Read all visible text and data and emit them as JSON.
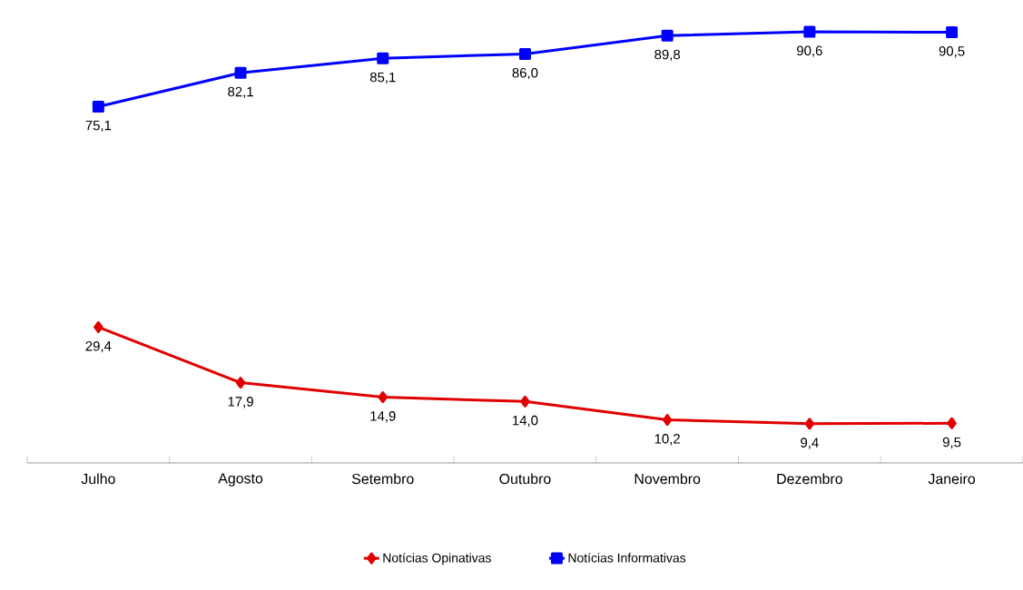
{
  "chart_data": {
    "type": "line",
    "categories": [
      "Julho",
      "Agosto",
      "Setembro",
      "Outubro",
      "Novembro",
      "Dezembro",
      "Janeiro"
    ],
    "series": [
      {
        "name": "Notícias Opinativas",
        "color": "#e00000",
        "marker": "diamond",
        "values": [
          29.4,
          17.9,
          14.9,
          14.0,
          10.2,
          9.4,
          9.5
        ],
        "value_labels": [
          "29,4",
          "17,9",
          "14,9",
          "14,0",
          "10,2",
          "9,4",
          "9,5"
        ]
      },
      {
        "name": "Notícias Informativas",
        "color": "#0000ff",
        "marker": "square",
        "values": [
          75.1,
          82.1,
          85.1,
          86.0,
          89.8,
          90.6,
          90.5
        ],
        "value_labels": [
          "75,1",
          "82,1",
          "85,1",
          "86,0",
          "89,8",
          "90,6",
          "90,5"
        ]
      }
    ],
    "legend": "bottom"
  }
}
